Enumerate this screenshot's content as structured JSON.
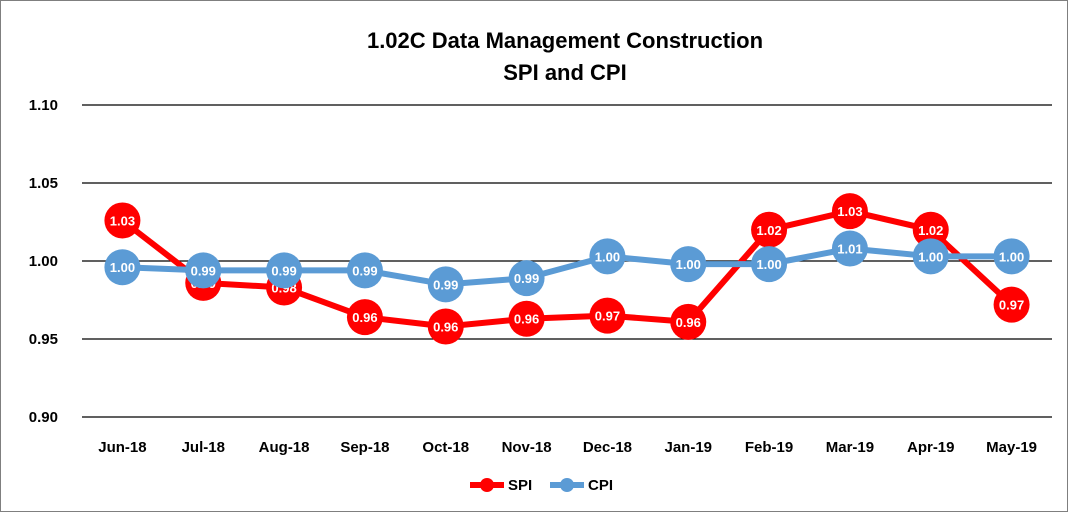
{
  "chart_data": {
    "type": "line",
    "title": "1.02C Data Management Construction",
    "subtitle": "SPI and CPI",
    "categories": [
      "Jun-18",
      "Jul-18",
      "Aug-18",
      "Sep-18",
      "Oct-18",
      "Nov-18",
      "Dec-18",
      "Jan-19",
      "Feb-19",
      "Mar-19",
      "Apr-19",
      "May-19"
    ],
    "ylim": [
      0.9,
      1.1
    ],
    "yticks": [
      "0.90",
      "0.95",
      "1.00",
      "1.05",
      "1.10"
    ],
    "grid": true,
    "legend_position": "bottom-center",
    "series": [
      {
        "name": "SPI",
        "color": "#ff0000",
        "values": [
          1.026,
          0.986,
          0.983,
          0.964,
          0.958,
          0.963,
          0.965,
          0.961,
          1.02,
          1.032,
          1.02,
          0.972
        ],
        "labels": [
          "1.03",
          "0.99",
          "0.98",
          "0.96",
          "0.96",
          "0.96",
          "0.97",
          "0.96",
          "1.02",
          "1.03",
          "1.02",
          "0.97"
        ]
      },
      {
        "name": "CPI",
        "color": "#5b9bd5",
        "values": [
          0.996,
          0.994,
          0.994,
          0.994,
          0.985,
          0.989,
          1.003,
          0.998,
          0.998,
          1.008,
          1.003,
          1.003
        ],
        "labels": [
          "1.00",
          "0.99",
          "0.99",
          "0.99",
          "0.99",
          "0.99",
          "1.00",
          "1.00",
          "1.00",
          "1.01",
          "1.00",
          "1.00"
        ]
      }
    ]
  }
}
